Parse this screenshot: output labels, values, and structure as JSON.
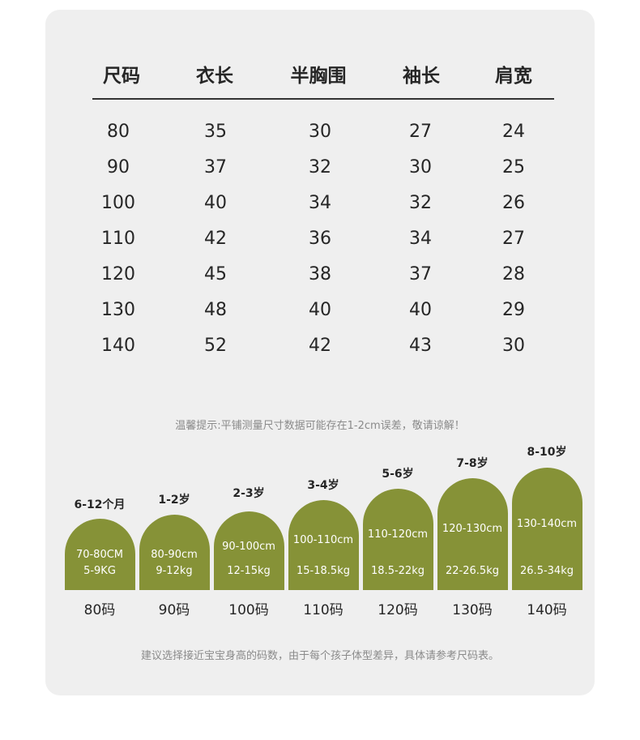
{
  "table": {
    "headers": [
      "尺码",
      "衣长",
      "半胸围",
      "袖长",
      "肩宽"
    ],
    "rows": [
      [
        "80",
        "35",
        "30",
        "27",
        "24"
      ],
      [
        "90",
        "37",
        "32",
        "30",
        "25"
      ],
      [
        "100",
        "40",
        "34",
        "32",
        "26"
      ],
      [
        "110",
        "42",
        "36",
        "34",
        "27"
      ],
      [
        "120",
        "45",
        "38",
        "37",
        "28"
      ],
      [
        "130",
        "48",
        "40",
        "40",
        "29"
      ],
      [
        "140",
        "52",
        "42",
        "43",
        "30"
      ]
    ]
  },
  "tip": "温馨提示:平铺测量尺寸数据可能存在1-2cm误差，敬请谅解！",
  "guide": [
    {
      "age": "6-12个月",
      "height": "70-80CM",
      "weight": "5-9KG",
      "size": "80码"
    },
    {
      "age": "1-2岁",
      "height": "80-90cm",
      "weight": "9-12kg",
      "size": "90码"
    },
    {
      "age": "2-3岁",
      "height": "90-100cm",
      "weight": "12-15kg",
      "size": "100码"
    },
    {
      "age": "3-4岁",
      "height": "100-110cm",
      "weight": "15-18.5kg",
      "size": "110码"
    },
    {
      "age": "5-6岁",
      "height": "110-120cm",
      "weight": "18.5-22kg",
      "size": "120码"
    },
    {
      "age": "7-8岁",
      "height": "120-130cm",
      "weight": "22-26.5kg",
      "size": "130码"
    },
    {
      "age": "8-10岁",
      "height": "130-140cm",
      "weight": "26.5-34kg",
      "size": "140码"
    }
  ],
  "note": "建议选择接近宝宝身高的码数，由于每个孩子体型差异，具体请参考尺码表。",
  "colors": {
    "dome": "#869237",
    "card": "#efefef"
  }
}
